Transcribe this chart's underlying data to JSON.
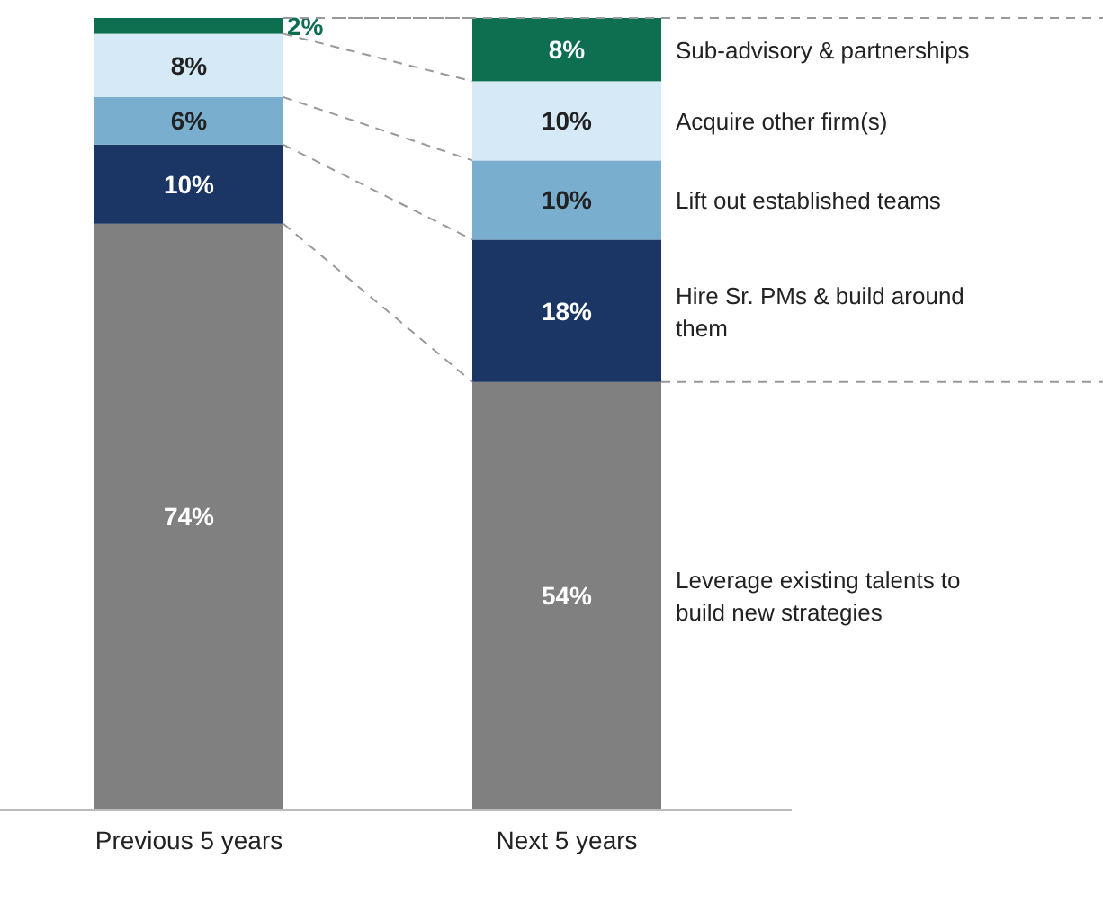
{
  "chart_data": {
    "type": "bar",
    "stacked": true,
    "categories": [
      "Previous 5 years",
      "Next 5 years"
    ],
    "series": [
      {
        "name": "Leverage existing talents to build new strategies",
        "color": "#808080",
        "values": [
          74,
          54
        ],
        "value_labels": [
          "74%",
          "54%"
        ]
      },
      {
        "name": "Hire Sr. PMs & build around them",
        "color": "#1b3664",
        "values": [
          10,
          18
        ],
        "value_labels": [
          "10%",
          "18%"
        ]
      },
      {
        "name": "Lift out established teams",
        "color": "#7aaecf",
        "values": [
          6,
          10
        ],
        "value_labels": [
          "6%",
          "10%"
        ]
      },
      {
        "name": "Acquire other firm(s)",
        "color": "#d6e9f6",
        "values": [
          8,
          10
        ],
        "value_labels": [
          "8%",
          "10%"
        ]
      },
      {
        "name": "Sub-advisory & partnerships",
        "color": "#0e6e50",
        "values": [
          2,
          8
        ],
        "value_labels": [
          "2%",
          "8%"
        ]
      }
    ],
    "ref_lines": [
      {
        "axis": "y",
        "value": 100
      },
      {
        "axis": "y",
        "value": 54
      }
    ]
  }
}
